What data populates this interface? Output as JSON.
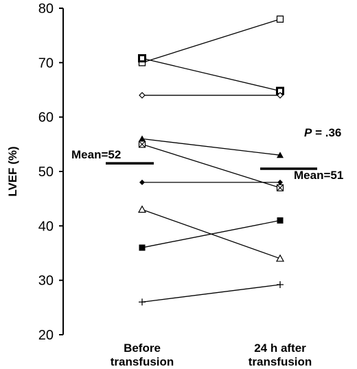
{
  "chart_data": {
    "type": "line",
    "ylabel": "LVEF (%)",
    "ylim": [
      20,
      80
    ],
    "yticks": [
      20,
      30,
      40,
      50,
      60,
      70,
      80
    ],
    "categories": [
      "Before transfusion",
      "24 h after transfusion"
    ],
    "category_lines": [
      [
        "Before",
        "transfusion"
      ],
      [
        "24 h after",
        "transfusion"
      ]
    ],
    "series": [
      {
        "marker": "open-square",
        "values": [
          70,
          78
        ]
      },
      {
        "marker": "bold-square",
        "values": [
          70.8,
          64.8
        ]
      },
      {
        "marker": "open-diamond",
        "values": [
          64,
          64
        ]
      },
      {
        "marker": "filled-triangle",
        "values": [
          56,
          53
        ]
      },
      {
        "marker": "crossed-square",
        "values": [
          55,
          47
        ]
      },
      {
        "marker": "filled-diamond",
        "values": [
          48,
          48
        ]
      },
      {
        "marker": "open-triangle",
        "values": [
          43,
          34
        ]
      },
      {
        "marker": "filled-square",
        "values": [
          36,
          41
        ]
      },
      {
        "marker": "plus",
        "values": [
          26,
          29.2
        ]
      }
    ],
    "means": [
      {
        "label": "Mean=52",
        "value": 51.5
      },
      {
        "label": "Mean=51",
        "value": 50.5
      }
    ],
    "p_value": {
      "label": "P",
      "text": " = .36"
    }
  }
}
